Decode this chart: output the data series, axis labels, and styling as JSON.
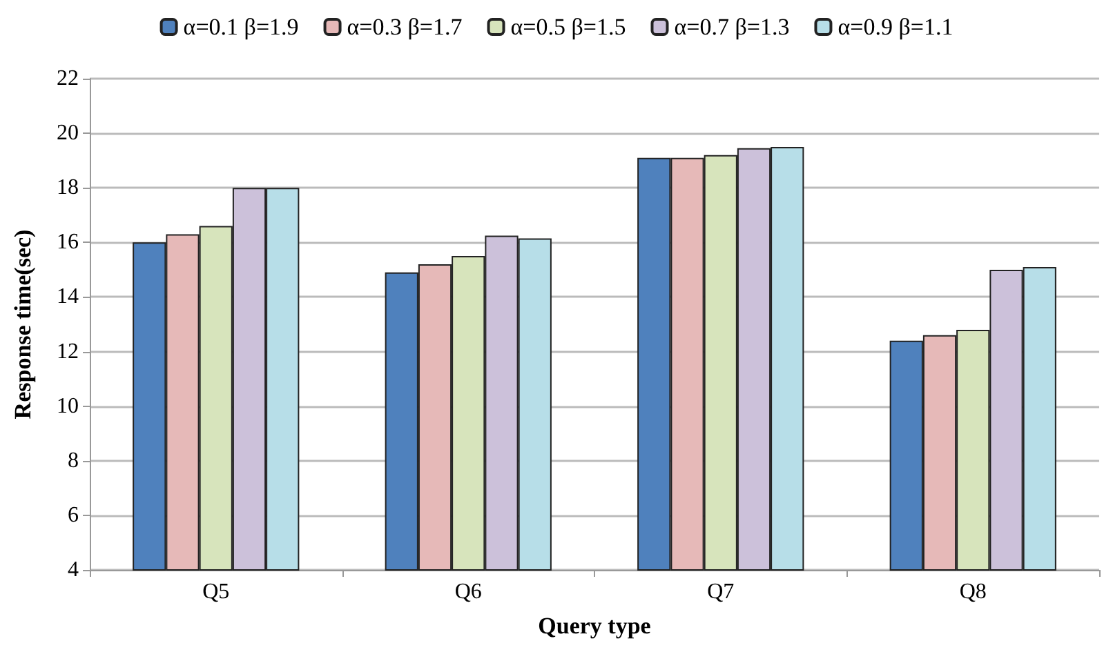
{
  "chart_data": {
    "type": "bar",
    "xlabel": "Query type",
    "ylabel": "Response time(sec)",
    "categories": [
      "Q5",
      "Q6",
      "Q7",
      "Q8"
    ],
    "series": [
      {
        "name": "α=0.1 β=1.9",
        "color": "#4f81bd",
        "values": [
          16.0,
          14.9,
          19.1,
          12.4
        ]
      },
      {
        "name": "α=0.3 β=1.7",
        "color": "#e6b9b8",
        "values": [
          16.3,
          15.2,
          19.1,
          12.6
        ]
      },
      {
        "name": "α=0.5 β=1.5",
        "color": "#d7e4bc",
        "values": [
          16.6,
          15.5,
          19.2,
          12.8
        ]
      },
      {
        "name": "α=0.7 β=1.3",
        "color": "#ccc1da",
        "values": [
          18.0,
          16.25,
          19.45,
          15.0
        ]
      },
      {
        "name": "α=0.9 β=1.1",
        "color": "#b7dee8",
        "values": [
          18.0,
          16.15,
          19.5,
          15.1
        ]
      }
    ],
    "ylim": [
      4,
      22
    ],
    "yticks": [
      4,
      6,
      8,
      10,
      12,
      14,
      16,
      18,
      20,
      22
    ],
    "grid": "y",
    "legend": "top"
  }
}
